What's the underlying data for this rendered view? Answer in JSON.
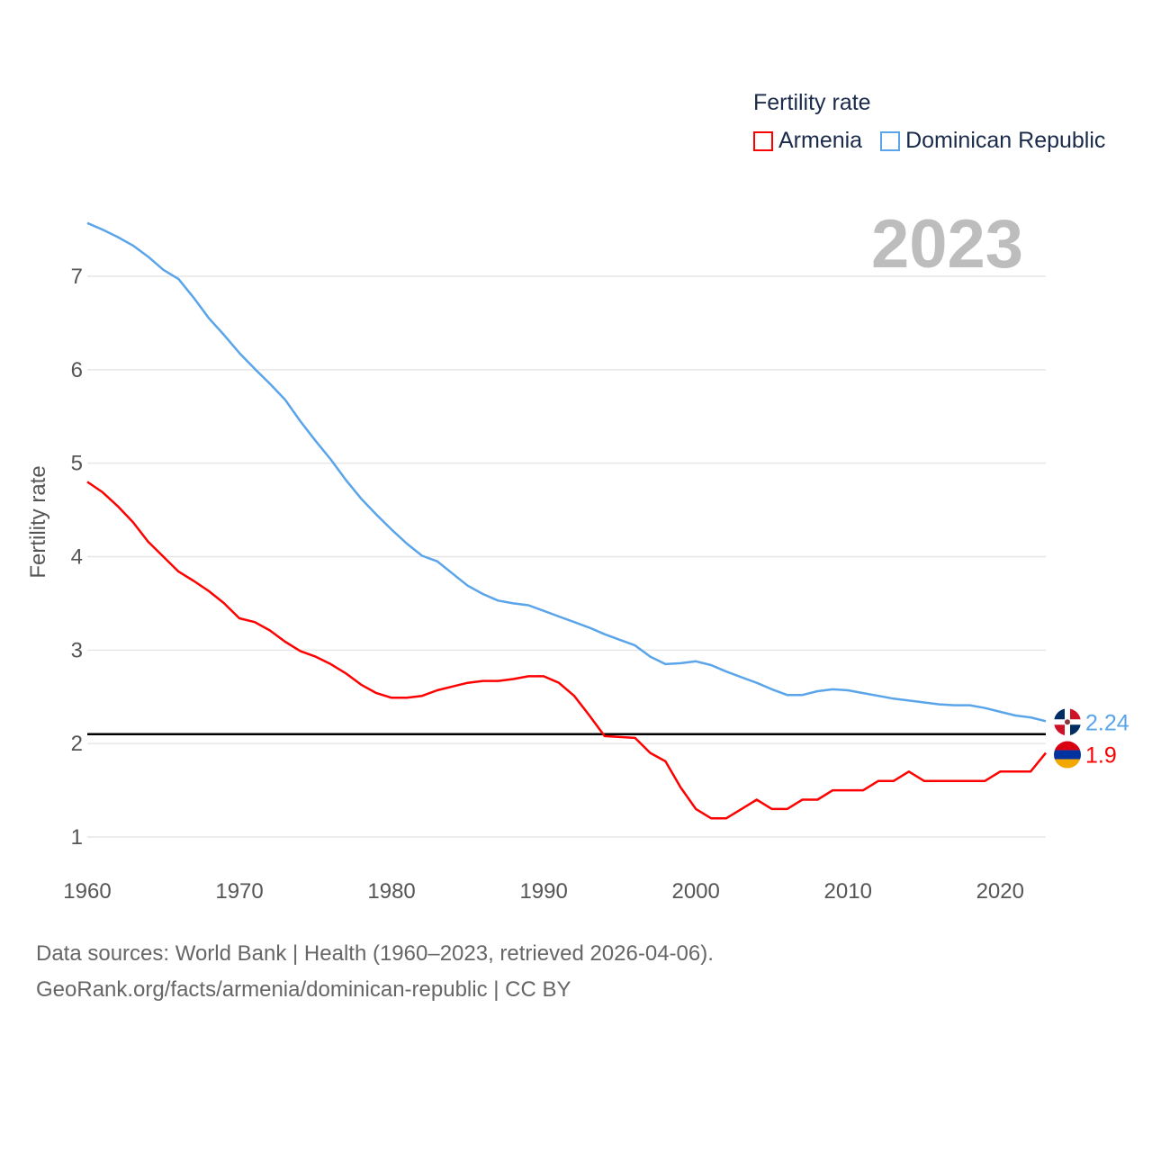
{
  "chart_data": {
    "type": "line",
    "ylabel": "Fertility rate",
    "xlabel": "",
    "legend_title": "Fertility rate",
    "legend_placement": "top-right",
    "year_label": "2023",
    "xlim": [
      1960,
      2023
    ],
    "ylim": [
      0.5,
      7.6
    ],
    "x_ticks": [
      "1960",
      "1970",
      "1980",
      "1990",
      "2000",
      "2010",
      "2020"
    ],
    "y_ticks": [
      "1",
      "2",
      "3",
      "4",
      "5",
      "6",
      "7"
    ],
    "reference_line": 2.1,
    "x": [
      1960,
      1961,
      1962,
      1963,
      1964,
      1965,
      1966,
      1967,
      1968,
      1969,
      1970,
      1971,
      1972,
      1973,
      1974,
      1975,
      1976,
      1977,
      1978,
      1979,
      1980,
      1981,
      1982,
      1983,
      1984,
      1985,
      1986,
      1987,
      1988,
      1989,
      1990,
      1991,
      1992,
      1993,
      1994,
      1995,
      1996,
      1997,
      1998,
      1999,
      2000,
      2001,
      2002,
      2003,
      2004,
      2005,
      2006,
      2007,
      2008,
      2009,
      2010,
      2011,
      2012,
      2013,
      2014,
      2015,
      2016,
      2017,
      2018,
      2019,
      2020,
      2021,
      2022,
      2023
    ],
    "series": [
      {
        "name": "Armenia",
        "color": "#ff0000",
        "end_label": "1.9",
        "values": [
          4.8,
          4.69,
          4.54,
          4.37,
          4.16,
          4.0,
          3.84,
          3.74,
          3.63,
          3.5,
          3.34,
          3.3,
          3.21,
          3.09,
          2.99,
          2.93,
          2.85,
          2.75,
          2.63,
          2.54,
          2.49,
          2.49,
          2.51,
          2.57,
          2.61,
          2.65,
          2.67,
          2.67,
          2.69,
          2.72,
          2.72,
          2.65,
          2.51,
          2.3,
          2.08,
          2.07,
          2.06,
          1.9,
          1.81,
          1.53,
          1.3,
          1.2,
          1.2,
          1.3,
          1.4,
          1.3,
          1.3,
          1.4,
          1.4,
          1.5,
          1.5,
          1.5,
          1.6,
          1.6,
          1.7,
          1.6,
          1.6,
          1.6,
          1.6,
          1.6,
          1.7,
          1.7,
          1.7,
          1.9
        ]
      },
      {
        "name": "Dominican Republic",
        "color": "#5aa5ea",
        "end_label": "2.24",
        "values": [
          7.57,
          7.5,
          7.42,
          7.33,
          7.21,
          7.07,
          6.97,
          6.77,
          6.55,
          6.37,
          6.18,
          6.01,
          5.85,
          5.68,
          5.45,
          5.24,
          5.04,
          4.82,
          4.62,
          4.45,
          4.29,
          4.14,
          4.01,
          3.95,
          3.82,
          3.69,
          3.6,
          3.53,
          3.5,
          3.48,
          3.42,
          3.36,
          3.3,
          3.24,
          3.17,
          3.11,
          3.05,
          2.93,
          2.85,
          2.86,
          2.88,
          2.84,
          2.77,
          2.71,
          2.65,
          2.58,
          2.52,
          2.52,
          2.56,
          2.58,
          2.57,
          2.54,
          2.51,
          2.48,
          2.46,
          2.44,
          2.42,
          2.41,
          2.41,
          2.38,
          2.34,
          2.3,
          2.28,
          2.24
        ]
      }
    ]
  },
  "footer": {
    "line1": "Data sources: World Bank | Health (1960–2023, retrieved 2026-04-06).",
    "line2": "GeoRank.org/facts/armenia/dominican-republic | CC BY"
  }
}
